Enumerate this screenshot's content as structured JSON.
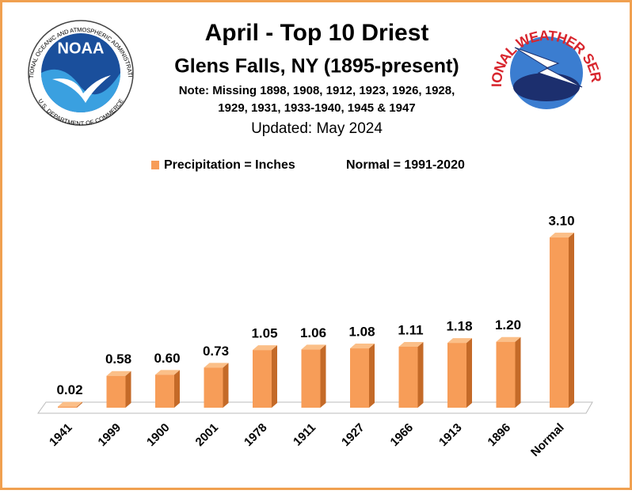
{
  "chart_data": {
    "type": "bar",
    "title": "April - Top 10 Driest",
    "subtitle": "Glens Falls, NY (1895-present)",
    "notes": [
      "Note: Missing 1898, 1908, 1912, 1923, 1926, 1928,",
      "1929, 1931, 1933-1940, 1945 & 1947"
    ],
    "updated": "Updated: May 2024",
    "legend": [
      "Precipitation = Inches",
      "Normal = 1991-2020"
    ],
    "color": "#f79d58",
    "categories": [
      "1941",
      "1999",
      "1900",
      "2001",
      "1978",
      "1911",
      "1927",
      "1966",
      "1913",
      "1896",
      "Normal"
    ],
    "values": [
      0.02,
      0.58,
      0.6,
      0.73,
      1.05,
      1.06,
      1.08,
      1.11,
      1.18,
      1.2,
      3.1
    ],
    "value_labels": [
      "0.02",
      "0.58",
      "0.60",
      "0.73",
      "1.05",
      "1.06",
      "1.08",
      "1.11",
      "1.18",
      "1.20",
      "3.10"
    ]
  },
  "logos": {
    "noaa": "NOAA",
    "noaa_top": "NATIONAL OCEANIC AND ATMOSPHERIC ADMINISTRATION",
    "noaa_bottom": "U.S. DEPARTMENT OF COMMERCE",
    "nws": "NATIONAL WEATHER SERVICE"
  }
}
